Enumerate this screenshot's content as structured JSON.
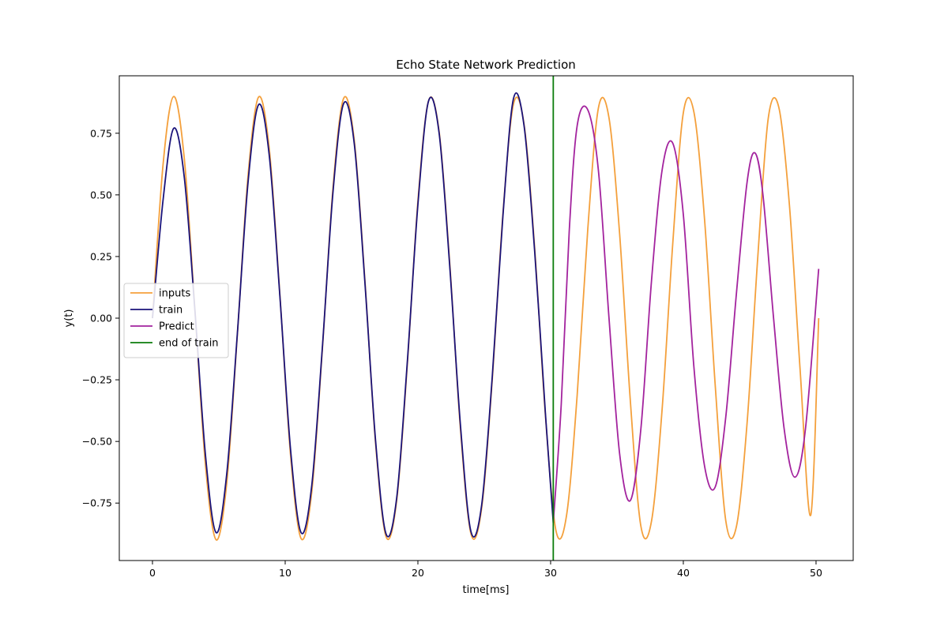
{
  "chart_data": {
    "type": "line",
    "title": "Echo State Network  Prediction",
    "xlabel": "time[ms]",
    "ylabel": "y(t)",
    "xlim": [
      -2.5,
      52.8
    ],
    "ylim": [
      -0.983,
      0.983
    ],
    "xticks": [
      0,
      10,
      20,
      30,
      40,
      50
    ],
    "xtick_labels": [
      "0",
      "10",
      "20",
      "30",
      "40",
      "50"
    ],
    "yticks": [
      -0.75,
      -0.5,
      -0.25,
      0.0,
      0.25,
      0.5,
      0.75
    ],
    "ytick_labels": [
      "−0.75",
      "−0.50",
      "−0.25",
      "0.00",
      "0.25",
      "0.50",
      "0.75"
    ],
    "grid": false,
    "legend_position": "center-left",
    "end_of_train_x": 30.2,
    "series": [
      {
        "name": "inputs",
        "color": "#f4a03c",
        "x": [
          0.0,
          0.8,
          1.6,
          2.4,
          3.2,
          4.0,
          4.8,
          5.6,
          6.4,
          7.2,
          8.0,
          8.8,
          9.6,
          10.4,
          11.2,
          12.0,
          12.8,
          13.6,
          14.4,
          15.2,
          16.0,
          16.8,
          17.6,
          18.4,
          19.2,
          20.0,
          20.8,
          21.6,
          22.4,
          23.2,
          24.0,
          24.8,
          25.6,
          26.4,
          27.2,
          28.0,
          28.8,
          29.6,
          30.4,
          31.2,
          32.0,
          32.8,
          33.6,
          34.4,
          35.2,
          36.0,
          36.8,
          37.6,
          38.4,
          39.2,
          40.0,
          40.8,
          41.6,
          42.4,
          43.2,
          44.0,
          44.8,
          45.6,
          46.4,
          47.2,
          48.0,
          48.8,
          49.6,
          50.2
        ],
        "values": [
          0.0,
          0.624,
          0.899,
          0.646,
          0.032,
          -0.601,
          -0.899,
          -0.667,
          -0.064,
          0.577,
          0.897,
          0.687,
          0.096,
          -0.553,
          -0.894,
          -0.706,
          -0.128,
          0.527,
          0.891,
          0.724,
          0.159,
          -0.501,
          -0.886,
          -0.741,
          -0.191,
          0.474,
          0.881,
          0.757,
          0.222,
          -0.446,
          -0.875,
          -0.772,
          -0.252,
          0.418,
          0.868,
          0.786,
          0.283,
          -0.389,
          -0.861,
          -0.8,
          -0.313,
          0.36,
          0.852,
          0.812,
          0.342,
          -0.33,
          -0.843,
          -0.824,
          -0.371,
          0.3,
          0.833,
          0.835,
          0.4,
          -0.27,
          -0.822,
          -0.845,
          -0.428,
          0.24,
          0.811,
          0.854,
          0.455,
          -0.209,
          -0.799,
          -0.0
        ]
      },
      {
        "name": "train",
        "color": "#1a137a",
        "x": [
          0.0,
          0.8,
          1.6,
          2.4,
          3.2,
          4.0,
          4.8,
          5.6,
          6.4,
          7.2,
          8.0,
          8.8,
          9.6,
          10.4,
          11.2,
          12.0,
          12.8,
          13.6,
          14.4,
          15.2,
          16.0,
          16.8,
          17.6,
          18.4,
          19.2,
          20.0,
          20.8,
          21.6,
          22.4,
          23.2,
          24.0,
          24.8,
          25.6,
          26.4,
          27.2,
          28.0,
          28.8,
          29.6,
          30.2
        ],
        "values": [
          0.0,
          0.48,
          0.77,
          0.57,
          0.03,
          -0.56,
          -0.87,
          -0.63,
          -0.06,
          0.55,
          0.866,
          0.66,
          0.09,
          -0.53,
          -0.87,
          -0.68,
          -0.12,
          0.51,
          0.87,
          0.71,
          0.15,
          -0.49,
          -0.875,
          -0.73,
          -0.18,
          0.46,
          0.88,
          0.75,
          0.21,
          -0.43,
          -0.866,
          -0.76,
          -0.24,
          0.41,
          0.89,
          0.78,
          0.27,
          -0.38,
          -0.83
        ]
      },
      {
        "name": "Predict",
        "color": "#a3239e",
        "x": [
          30.2,
          30.8,
          31.4,
          32.0,
          32.8,
          33.6,
          34.4,
          35.2,
          36.0,
          36.8,
          37.6,
          38.4,
          39.2,
          40.0,
          40.8,
          41.6,
          42.4,
          43.2,
          44.0,
          44.8,
          45.4,
          46.0,
          46.8,
          47.6,
          48.4,
          49.2,
          50.2
        ],
        "values": [
          -0.83,
          -0.35,
          0.35,
          0.78,
          0.845,
          0.6,
          0.0,
          -0.55,
          -0.74,
          -0.45,
          0.15,
          0.6,
          0.71,
          0.42,
          -0.2,
          -0.6,
          -0.685,
          -0.4,
          0.1,
          0.55,
          0.67,
          0.5,
          0.0,
          -0.45,
          -0.645,
          -0.45,
          0.2
        ]
      }
    ],
    "vline": {
      "name": "end of train",
      "color": "#0b7d0b",
      "x": 30.2
    }
  }
}
